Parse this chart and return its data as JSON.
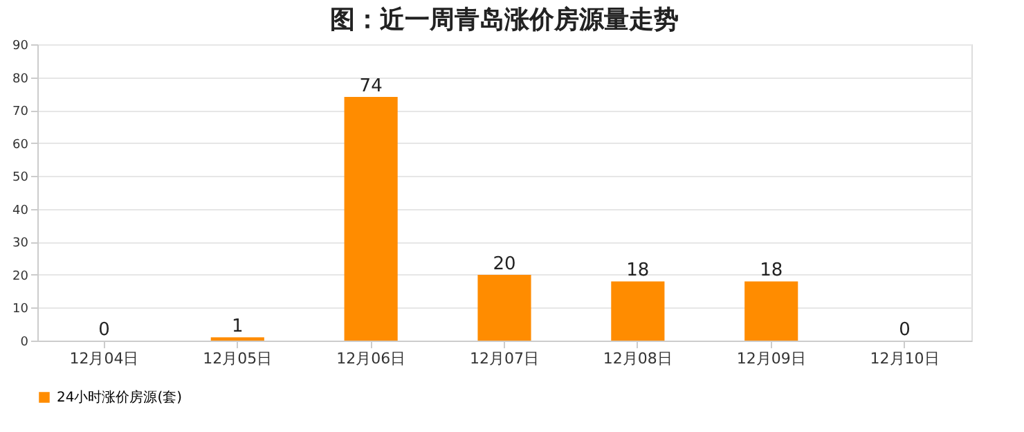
{
  "chart_data": {
    "type": "bar",
    "title": "图：近一周青岛涨价房源量走势",
    "categories": [
      "12月04日",
      "12月05日",
      "12月06日",
      "12月07日",
      "12月08日",
      "12月09日",
      "12月10日"
    ],
    "series": [
      {
        "name": "24小时涨价房源(套)",
        "color": "#ff8c00",
        "values": [
          0,
          1,
          74,
          20,
          18,
          18,
          0
        ]
      }
    ],
    "ylim": [
      0,
      90
    ],
    "yticks": [
      0,
      10,
      20,
      30,
      40,
      50,
      60,
      70,
      80,
      90
    ],
    "grid": "y",
    "legend": "bottom",
    "data_labels": true
  }
}
